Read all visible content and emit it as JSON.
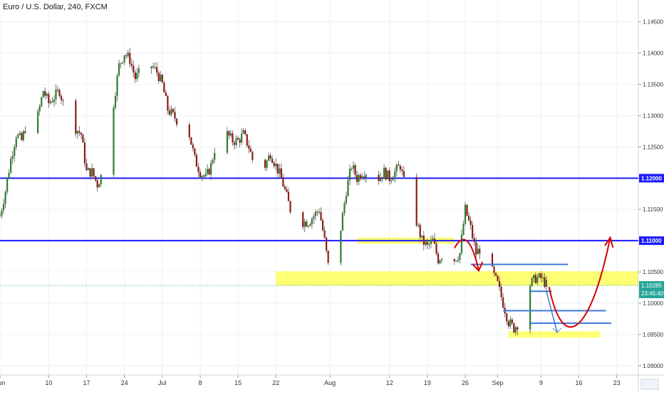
{
  "chart_data": {
    "type": "candlestick",
    "title": "Euro / U.S. Dollar, 240, FXCM",
    "y_ticks": [
      1.145,
      1.14,
      1.135,
      1.13,
      1.125,
      1.12,
      1.115,
      1.11,
      1.105,
      1.1,
      1.095,
      1.09
    ],
    "y_tick_labels": [
      "1.14500",
      "1.14000",
      "1.13500",
      "1.13000",
      "1.12500",
      "1.12000",
      "1.11500",
      "1.11000",
      "1.10500",
      "1.10000",
      "1.09500",
      "1.09000"
    ],
    "ylim": [
      1.0885,
      1.1485
    ],
    "x_ticks": [
      {
        "label": "Jun",
        "day": 0
      },
      {
        "label": "10",
        "day": 9
      },
      {
        "label": "17",
        "day": 16
      },
      {
        "label": "24",
        "day": 23
      },
      {
        "label": "Jul",
        "day": 30
      },
      {
        "label": "8",
        "day": 37
      },
      {
        "label": "15",
        "day": 44
      },
      {
        "label": "22",
        "day": 51
      },
      {
        "label": "Aug",
        "day": 61
      },
      {
        "label": "12",
        "day": 72
      },
      {
        "label": "19",
        "day": 79
      },
      {
        "label": "26",
        "day": 86
      },
      {
        "label": "Sep",
        "day": 92
      },
      {
        "label": "9",
        "day": 100
      },
      {
        "label": "16",
        "day": 107
      },
      {
        "label": "23",
        "day": 114
      }
    ],
    "xlim_days": [
      0,
      118
    ],
    "price_path": [
      [
        0,
        1.114
      ],
      [
        1,
        1.118
      ],
      [
        2,
        1.123
      ],
      [
        3,
        1.127
      ],
      [
        4,
        1.126
      ],
      [
        5,
        1.129
      ],
      [
        6,
        1.123
      ],
      [
        7,
        1.13
      ],
      [
        8,
        1.134
      ],
      [
        9,
        1.132
      ],
      [
        10,
        1.133
      ],
      [
        11,
        1.134
      ],
      [
        12,
        1.131
      ],
      [
        13,
        1.129
      ],
      [
        14,
        1.128
      ],
      [
        15,
        1.127
      ],
      [
        16,
        1.121
      ],
      [
        17,
        1.121
      ],
      [
        18,
        1.119
      ],
      [
        19,
        1.121
      ],
      [
        20,
        1.126
      ],
      [
        21,
        1.132
      ],
      [
        22,
        1.138
      ],
      [
        23,
        1.14
      ],
      [
        24,
        1.139
      ],
      [
        25,
        1.136
      ],
      [
        26,
        1.137
      ],
      [
        27,
        1.137
      ],
      [
        28,
        1.138
      ],
      [
        29,
        1.137
      ],
      [
        30,
        1.135
      ],
      [
        31,
        1.131
      ],
      [
        32,
        1.13
      ],
      [
        33,
        1.129
      ],
      [
        34,
        1.128
      ],
      [
        35,
        1.127
      ],
      [
        36,
        1.123
      ],
      [
        37,
        1.121
      ],
      [
        38,
        1.12
      ],
      [
        39,
        1.122
      ],
      [
        40,
        1.126
      ],
      [
        41,
        1.128
      ],
      [
        42,
        1.127
      ],
      [
        43,
        1.126
      ],
      [
        44,
        1.126
      ],
      [
        45,
        1.127
      ],
      [
        46,
        1.125
      ],
      [
        47,
        1.122
      ],
      [
        48,
        1.121
      ],
      [
        49,
        1.122
      ],
      [
        50,
        1.124
      ],
      [
        51,
        1.122
      ],
      [
        52,
        1.12
      ],
      [
        53,
        1.117
      ],
      [
        54,
        1.114
      ],
      [
        55,
        1.112
      ],
      [
        56,
        1.113
      ],
      [
        57,
        1.113
      ],
      [
        58,
        1.114
      ],
      [
        59,
        1.115
      ],
      [
        60,
        1.11
      ],
      [
        61,
        1.104
      ],
      [
        62,
        1.108
      ],
      [
        63,
        1.112
      ],
      [
        64,
        1.118
      ],
      [
        65,
        1.122
      ],
      [
        66,
        1.12
      ],
      [
        67,
        1.121
      ],
      [
        68,
        1.121
      ],
      [
        69,
        1.12
      ],
      [
        70,
        1.12
      ],
      [
        71,
        1.121
      ],
      [
        72,
        1.12
      ],
      [
        73,
        1.121
      ],
      [
        74,
        1.122
      ],
      [
        75,
        1.118
      ],
      [
        76,
        1.117
      ],
      [
        77,
        1.113
      ],
      [
        78,
        1.11
      ],
      [
        79,
        1.109
      ],
      [
        80,
        1.11
      ],
      [
        81,
        1.107
      ],
      [
        82,
        1.108
      ],
      [
        83,
        1.108
      ],
      [
        84,
        1.107
      ],
      [
        85,
        1.108
      ],
      [
        86,
        1.115
      ],
      [
        87,
        1.112
      ],
      [
        88,
        1.108
      ],
      [
        89,
        1.109
      ],
      [
        90,
        1.108
      ],
      [
        91,
        1.105
      ],
      [
        92,
        1.103
      ],
      [
        93,
        1.1
      ],
      [
        94,
        1.097
      ],
      [
        95,
        1.096
      ],
      [
        96,
        1.097
      ],
      [
        97,
        1.1
      ],
      [
        98,
        1.103
      ],
      [
        99,
        1.104
      ],
      [
        100,
        1.104
      ],
      [
        101,
        1.103
      ]
    ],
    "horizontal_lines": [
      {
        "price": 1.12,
        "label": "1.12000",
        "color": "#1a1aff"
      },
      {
        "price": 1.11,
        "label": "1.11000",
        "color": "#1a1aff"
      }
    ],
    "current_price": {
      "value": 1.10285,
      "label": "1.10285",
      "countdown": "23:45:40"
    },
    "support_resistance_zones": [
      {
        "day_start": 66,
        "day_end": 84,
        "price_low": 1.1095,
        "price_high": 1.1105
      },
      {
        "day_start": 51,
        "day_end": 118,
        "price_low": 1.1028,
        "price_high": 1.1051
      },
      {
        "day_start": 94,
        "day_end": 111,
        "price_low": 1.0945,
        "price_high": 1.0955
      }
    ],
    "trend_levels": [
      {
        "day_start": 87,
        "day_end": 105,
        "price": 1.1062
      },
      {
        "day_start": 98,
        "day_end": 102,
        "price": 1.1019
      },
      {
        "day_start": 93,
        "day_end": 112,
        "price": 1.0988
      },
      {
        "day_start": 98,
        "day_end": 113,
        "price": 1.0968
      }
    ],
    "colors": {
      "up": "#26a69a",
      "down": "#ef5350",
      "level_line": "#1a1aff",
      "zone": "#ffff44",
      "trend_level": "#3c78d8",
      "arrow_red": "#d40000",
      "projection_blue": "#3c78d8"
    }
  }
}
